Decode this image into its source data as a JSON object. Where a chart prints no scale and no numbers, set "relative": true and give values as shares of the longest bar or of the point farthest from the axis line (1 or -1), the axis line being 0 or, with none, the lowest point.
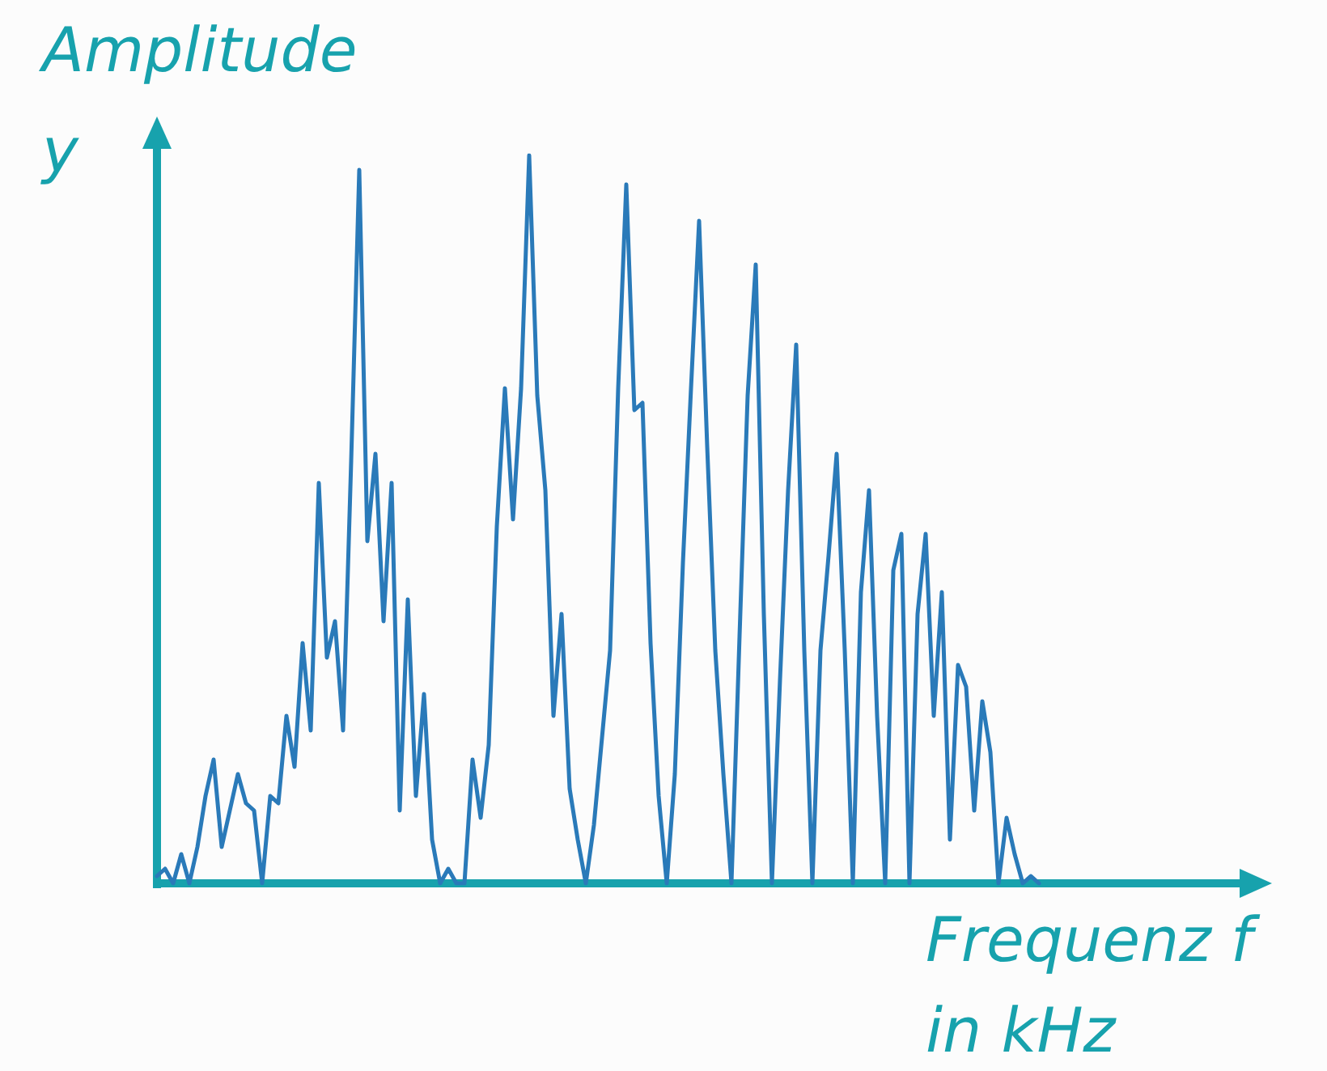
{
  "chart_data": {
    "type": "line",
    "relative": true,
    "ylabel": "Amplitude\ny",
    "xlabel": "Frequenz f\nin kHz",
    "categories": [
      null,
      null,
      null,
      null,
      null,
      null,
      null,
      null,
      null,
      null,
      null,
      null,
      null,
      null,
      null,
      null,
      null,
      null,
      null,
      null,
      null,
      null,
      null,
      null,
      null,
      null,
      null,
      null,
      null,
      null,
      null,
      null,
      null,
      null,
      null,
      null,
      null,
      null,
      null,
      null,
      null,
      null,
      null,
      null,
      null,
      null,
      null,
      null,
      null,
      null,
      null,
      null,
      null,
      null,
      null,
      null,
      null,
      null,
      null,
      null,
      null,
      null,
      null,
      null,
      null,
      null,
      null,
      null,
      null,
      null,
      null,
      null,
      null,
      null,
      null,
      null,
      null,
      null,
      null,
      null,
      null,
      null,
      null,
      null,
      null,
      null,
      null,
      null,
      null,
      null,
      null,
      null,
      null,
      null,
      null,
      null,
      null,
      null,
      null,
      null,
      null,
      null,
      null,
      null,
      null,
      null,
      null,
      null,
      null,
      null
    ],
    "series": [
      {
        "color": "#2a7ab9",
        "values": [
          0.01,
          0.02,
          0,
          0.04,
          0,
          0.05,
          0.12,
          0.17,
          0.05,
          0.1,
          0.15,
          0.11,
          0.1,
          0,
          0.12,
          0.11,
          0.23,
          0.16,
          0.33,
          0.21,
          0.55,
          0.31,
          0.36,
          0.21,
          0.58,
          0.98,
          0.47,
          0.59,
          0.36,
          0.55,
          0.1,
          0.39,
          0.12,
          0.26,
          0.06,
          0,
          0.02,
          0,
          0,
          0.17,
          0.09,
          0.19,
          0.49,
          0.68,
          0.5,
          0.68,
          1,
          0.67,
          0.54,
          0.23,
          0.37,
          0.13,
          0.06,
          0,
          0.08,
          0.2,
          0.32,
          0.68,
          0.96,
          0.65,
          0.66,
          0.33,
          0.12,
          0,
          0.15,
          0.44,
          0.68,
          0.91,
          0.6,
          0.32,
          0.15,
          0,
          0.34,
          0.67,
          0.85,
          0.37,
          0,
          0.28,
          0.54,
          0.74,
          0.32,
          0,
          0.32,
          0.45,
          0.59,
          0.32,
          0,
          0.4,
          0.54,
          0.23,
          0,
          0.43,
          0.48,
          0,
          0.37,
          0.48,
          0.23,
          0.4,
          0.06,
          0.3,
          0.27,
          0.1,
          0.25,
          0.18,
          0,
          0.09,
          0.04,
          0,
          0.01,
          0
        ]
      }
    ],
    "grid": false,
    "marker": "none"
  }
}
